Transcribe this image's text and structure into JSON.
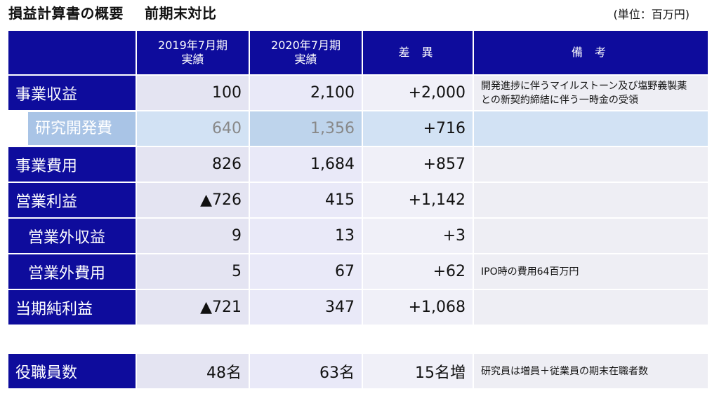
{
  "title": "損益計算書の概要",
  "subtitle": "前期末対比",
  "unit": "(単位：百万円)",
  "headers": {
    "col1": "2019年7月期",
    "col1_sub": "実績",
    "col2": "2020年7月期",
    "col2_sub": "実績",
    "diff": "差 異",
    "notes": "備 考"
  },
  "rows": [
    {
      "label": "事業収益",
      "fy2019": "100",
      "fy2020": "2,100",
      "diff": "+2,000",
      "note1": "開発進捗に伴うマイルストーン及び塩野義製薬",
      "note2": "との新契約締結に伴う一時金の受領"
    },
    {
      "label": "研究開発費",
      "fy2019": "640",
      "fy2020": "1,356",
      "diff": "+716",
      "note1": "",
      "note2": ""
    },
    {
      "label": "事業費用",
      "fy2019": "826",
      "fy2020": "1,684",
      "diff": "+857",
      "note1": "",
      "note2": ""
    },
    {
      "label": "営業利益",
      "fy2019": "▲726",
      "fy2020": "415",
      "diff": "+1,142",
      "note1": "",
      "note2": ""
    },
    {
      "label": "営業外収益",
      "fy2019": "9",
      "fy2020": "13",
      "diff": "+3",
      "note1": "",
      "note2": ""
    },
    {
      "label": "営業外費用",
      "fy2019": "5",
      "fy2020": "67",
      "diff": "+62",
      "note1": "IPO時の費用64百万円",
      "note2": ""
    },
    {
      "label": "当期純利益",
      "fy2019": "▲721",
      "fy2020": "347",
      "diff": "+1,068",
      "note1": "",
      "note2": ""
    }
  ],
  "staff": {
    "label": "役職員数",
    "fy2019": "48名",
    "fy2020": "63名",
    "diff": "15名増",
    "note": "研究員は増員＋従業員の期末在職者数"
  }
}
